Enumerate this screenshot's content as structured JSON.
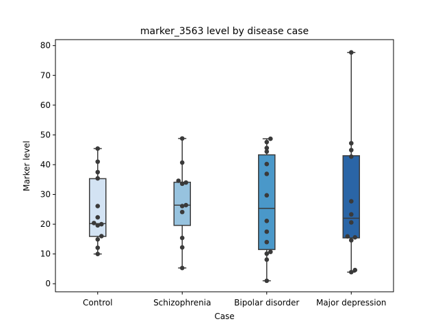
{
  "chart_data": {
    "type": "box",
    "title": "marker_3563 level by disease case",
    "xlabel": "Case",
    "ylabel": "Marker level",
    "ylim": [
      -2.7,
      82.0
    ],
    "yticks": [
      0,
      10,
      20,
      30,
      40,
      50,
      60,
      70,
      80
    ],
    "grid": false,
    "colors": {
      "box_fill": [
        "#d3e3f3",
        "#97c3df",
        "#4a98c9",
        "#2a65a6"
      ],
      "line": "#3b3b3b",
      "point": "#3a3a3a"
    },
    "categories": [
      "Control",
      "Schizophrenia",
      "Bipolar disorder",
      "Major depression"
    ],
    "boxes": [
      {
        "category": "Control",
        "whisker_low": 10.0,
        "q1": 15.9,
        "median": 20.2,
        "q3": 35.3,
        "whisker_high": 45.4,
        "points": [
          45.4,
          41.0,
          37.5,
          35.4,
          26.1,
          22.3,
          20.4,
          20.0,
          19.6,
          16.0,
          14.9,
          12.1,
          10.0
        ]
      },
      {
        "category": "Schizophrenia",
        "whisker_low": 5.3,
        "q1": 19.6,
        "median": 26.4,
        "q3": 34.1,
        "whisker_high": 48.8,
        "points": [
          48.8,
          40.7,
          34.6,
          34.0,
          33.6,
          26.4,
          26.1,
          24.1,
          15.4,
          12.2,
          5.3
        ]
      },
      {
        "category": "Bipolar disorder",
        "whisker_low": 1.0,
        "q1": 11.5,
        "median": 25.3,
        "q3": 43.3,
        "whisker_high": 48.7,
        "points": [
          48.7,
          47.6,
          45.6,
          44.4,
          40.2,
          36.9,
          29.7,
          21.1,
          17.5,
          14.0,
          10.7,
          10.1,
          8.1,
          1.0
        ]
      },
      {
        "category": "Major depression",
        "whisker_low": 3.9,
        "q1": 15.4,
        "median": 22.0,
        "q3": 43.0,
        "whisker_high": 77.7,
        "points": [
          77.7,
          47.2,
          44.9,
          42.7,
          27.7,
          23.3,
          20.6,
          15.9,
          15.6,
          14.6,
          4.6,
          3.9
        ]
      }
    ]
  }
}
